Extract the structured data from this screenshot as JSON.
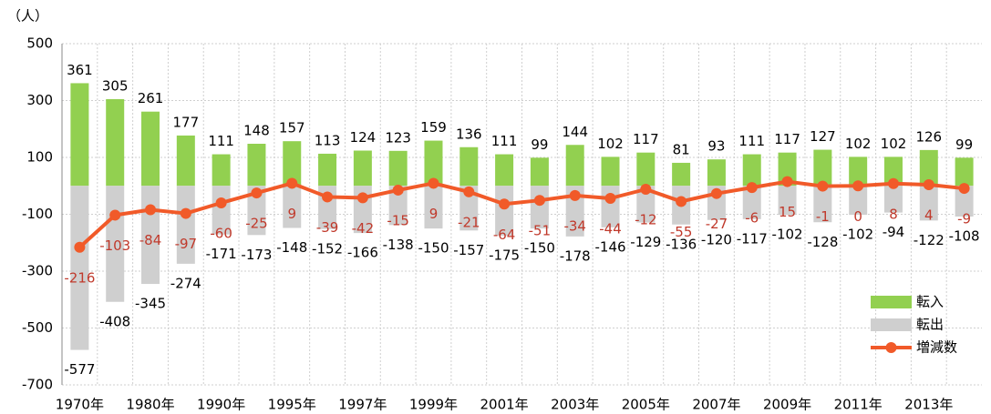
{
  "chart_data": {
    "type": "bar",
    "y_label": "（人）",
    "categories": [
      "1970年",
      null,
      "1980年",
      null,
      "1990年",
      null,
      "1995年",
      null,
      "1997年",
      null,
      "1999年",
      null,
      "2001年",
      null,
      "2003年",
      null,
      "2005年",
      null,
      "2007年",
      null,
      "2009年",
      null,
      "2011年",
      null,
      "2013年",
      null
    ],
    "series": [
      {
        "name": "転入",
        "color": "#92d050",
        "values": [
          361,
          305,
          261,
          177,
          111,
          148,
          157,
          113,
          124,
          123,
          159,
          136,
          111,
          99,
          144,
          102,
          117,
          81,
          93,
          111,
          117,
          127,
          102,
          102,
          126,
          99
        ]
      },
      {
        "name": "転出",
        "color": "#cfcfcf",
        "values": [
          -577,
          -408,
          -345,
          -274,
          -171,
          -173,
          -148,
          -152,
          -166,
          -138,
          -150,
          -157,
          -175,
          -150,
          -178,
          -146,
          -129,
          -136,
          -120,
          -117,
          -102,
          -128,
          -102,
          -94,
          -122,
          -108
        ]
      },
      {
        "name": "増減数",
        "type": "line",
        "color": "#f15a29",
        "label_color": "#c0392b",
        "values": [
          -216,
          -103,
          -84,
          -97,
          -60,
          -25,
          9,
          -39,
          -42,
          -15,
          9,
          -21,
          -64,
          -51,
          -34,
          -44,
          -12,
          -55,
          -27,
          -6,
          15,
          -1,
          0,
          8,
          4,
          -9
        ]
      }
    ],
    "ylim": [
      -700,
      500
    ],
    "yticks": [
      -700,
      -500,
      -300,
      -100,
      100,
      300,
      500
    ],
    "grid": true,
    "legend": "lower right"
  }
}
